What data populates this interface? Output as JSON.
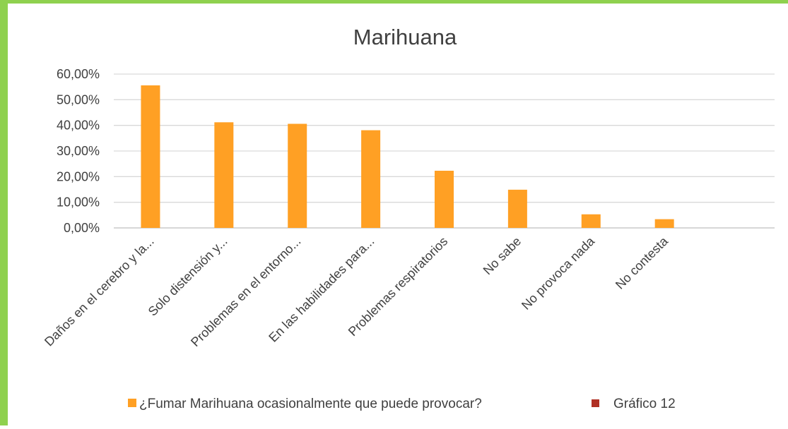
{
  "chart_data": {
    "type": "bar",
    "title": "Marihuana",
    "categories": [
      "Daños en el cerebro y la...",
      "Solo distensión y...",
      "Problemas en el entorno...",
      "En las habilidades para...",
      "Problemas respiratorios",
      "No sabe",
      "No provoca nada",
      "No contesta",
      ""
    ],
    "series": [
      {
        "name": "¿Fumar Marihuana ocasionalmente que puede provocar?",
        "color": "#ffa024",
        "values": [
          0.556,
          0.412,
          0.406,
          0.381,
          0.223,
          0.149,
          0.053,
          0.034,
          null
        ]
      },
      {
        "name": "Gráfico 12",
        "color": "#b03024",
        "values": [
          null,
          null,
          null,
          null,
          null,
          null,
          null,
          null,
          null
        ]
      }
    ],
    "y_ticks": [
      "0,00%",
      "10,00%",
      "20,00%",
      "30,00%",
      "40,00%",
      "50,00%",
      "60,00%"
    ],
    "ylim": [
      0,
      0.6
    ],
    "grid": true,
    "legend": "bottom",
    "xlabel": "",
    "ylabel": ""
  }
}
